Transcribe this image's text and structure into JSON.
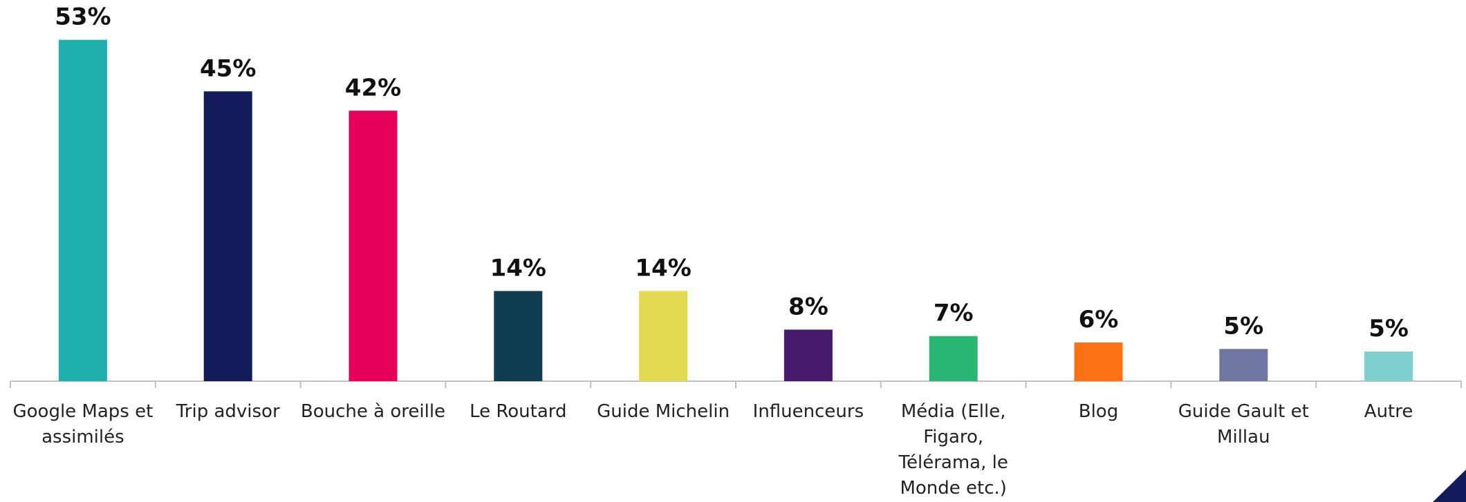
{
  "chart_data": {
    "type": "bar",
    "categories": [
      "Google Maps et assimilés",
      "Trip advisor",
      "Bouche à oreille",
      "Le Routard",
      "Guide Michelin",
      "Influenceurs",
      "Média (Elle, Figaro, Télérama, le Monde etc.)",
      "Blog",
      "Guide Gault et Millau",
      "Autre"
    ],
    "values": [
      53,
      45,
      42,
      14,
      14,
      8,
      7,
      6,
      5,
      4.6
    ],
    "value_labels": [
      "53%",
      "45%",
      "42%",
      "14%",
      "14%",
      "8%",
      "7%",
      "6%",
      "5%",
      "5%"
    ],
    "colors": [
      "#1fb0ae",
      "#131c5a",
      "#e6005a",
      "#113d52",
      "#e2db52",
      "#471a6b",
      "#2ab673",
      "#fc7113",
      "#6f76a0",
      "#7dd0cd"
    ],
    "ylim": [
      0,
      55
    ]
  }
}
